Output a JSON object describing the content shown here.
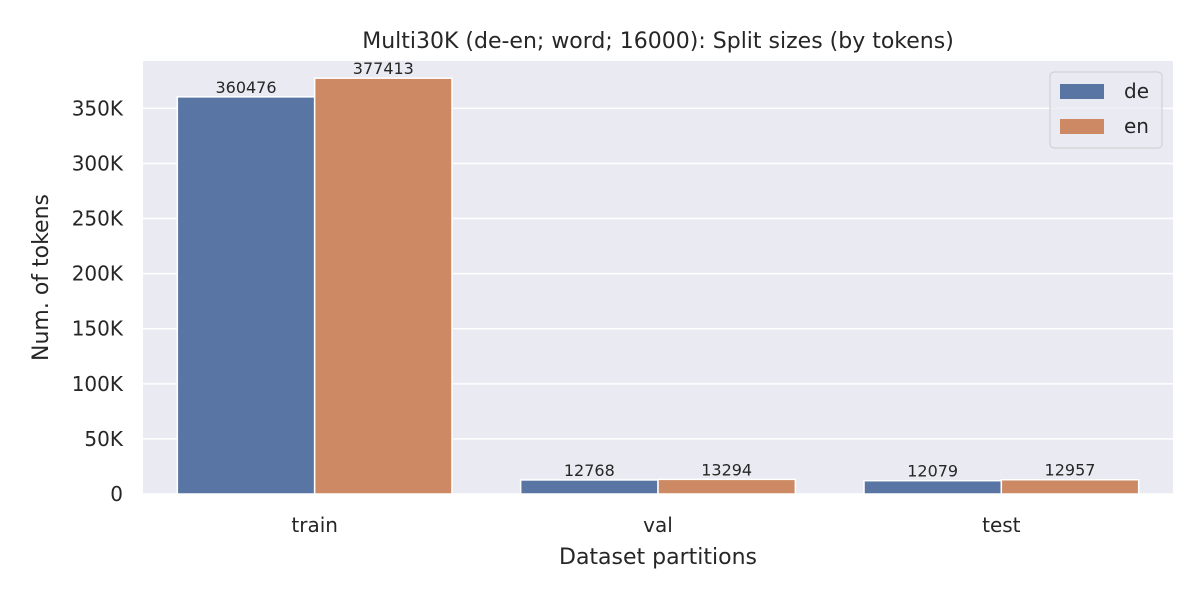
{
  "chart_data": {
    "type": "bar",
    "title": "Multi30K (de-en; word; 16000): Split sizes (by tokens)",
    "xlabel": "Dataset partitions",
    "ylabel": "Num. of tokens",
    "categories": [
      "train",
      "val",
      "test"
    ],
    "series": [
      {
        "name": "de",
        "values": [
          360476,
          12768,
          12079
        ],
        "color": "#5975a4"
      },
      {
        "name": "en",
        "values": [
          377413,
          13294,
          12957
        ],
        "color": "#cc8963"
      }
    ],
    "ylim": [
      0,
      393000
    ],
    "yticks": [
      0,
      50000,
      100000,
      150000,
      200000,
      250000,
      300000,
      350000
    ],
    "ytick_labels": [
      "0",
      "50K",
      "100K",
      "150K",
      "200K",
      "250K",
      "300K",
      "350K"
    ],
    "grid": true,
    "legend_position": "top-right",
    "background": "#eaeaf2"
  }
}
